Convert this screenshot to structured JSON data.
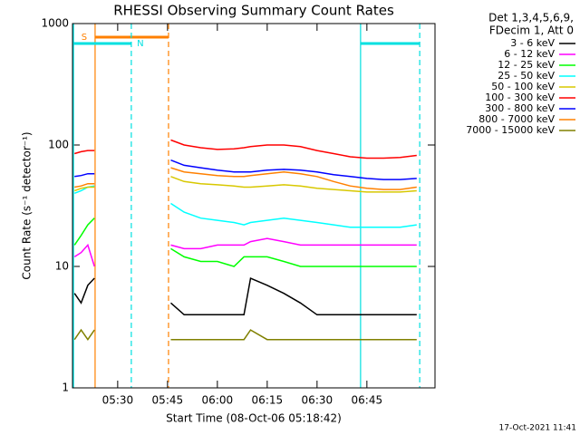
{
  "chart_data": {
    "type": "line",
    "title": "RHESSI Observing Summary Count Rates",
    "xlabel": "Start Time (08-Oct-06 05:18:42)",
    "ylabel": "Count Rate (s⁻¹ detector⁻¹)",
    "legend_header": [
      "Det 1,3,4,5,6,9,",
      "FDecim 1, Att 0"
    ],
    "timestamp": "17-Oct-2021 11:41",
    "log_y": true,
    "ylim": [
      1,
      1000
    ],
    "yticks": [
      1,
      10,
      100,
      1000
    ],
    "xlim": [
      316.4,
      425.5
    ],
    "xticks": [
      {
        "value": 330,
        "label": "05:30"
      },
      {
        "value": 345,
        "label": "05:45"
      },
      {
        "value": 360,
        "label": "06:00"
      },
      {
        "value": 375,
        "label": "06:15"
      },
      {
        "value": 390,
        "label": "06:30"
      },
      {
        "value": 405,
        "label": "06:45"
      }
    ],
    "intervals": [
      {
        "label": "S",
        "color": "#ff8000",
        "xlim": [
          323.2,
          345.3
        ],
        "level": 773
      },
      {
        "label": "N",
        "color": "#00e0e0",
        "xlim": [
          316.7,
          334.1
        ],
        "level": 685
      },
      {
        "color": "#00e0e0",
        "xlim": [
          403.1,
          420.9
        ],
        "level": 685
      }
    ],
    "x": [
      317,
      319,
      321,
      323,
      334,
      346,
      350,
      355,
      360,
      365,
      368,
      370,
      375,
      380,
      385,
      390,
      395,
      400,
      405,
      410,
      415,
      420
    ],
    "series": [
      {
        "name": "3 - 6 keV",
        "color": "#000000",
        "values": [
          6,
          5,
          7,
          8,
          null,
          5,
          4,
          4,
          4,
          4,
          4,
          8,
          7,
          6,
          5,
          4,
          4,
          4,
          4,
          4,
          4,
          4
        ]
      },
      {
        "name": "6 - 12 keV",
        "color": "#ff00ff",
        "values": [
          12,
          13,
          15,
          10,
          null,
          15,
          14,
          14,
          15,
          15,
          15,
          16,
          17,
          16,
          15,
          15,
          15,
          15,
          15,
          15,
          15,
          15
        ]
      },
      {
        "name": "12 - 25 keV",
        "color": "#00ff00",
        "values": [
          15,
          18,
          22,
          25,
          null,
          14,
          12,
          11,
          11,
          10,
          12,
          12,
          12,
          11,
          10,
          10,
          10,
          10,
          10,
          10,
          10,
          10
        ]
      },
      {
        "name": "25 - 50 keV",
        "color": "#00ffff",
        "values": [
          40,
          42,
          45,
          46,
          null,
          33,
          28,
          25,
          24,
          23,
          22,
          23,
          24,
          25,
          24,
          23,
          22,
          21,
          21,
          21,
          21,
          22
        ]
      },
      {
        "name": "50 - 100 keV",
        "color": "#d8c800",
        "values": [
          42,
          44,
          45,
          45,
          null,
          55,
          50,
          48,
          47,
          46,
          45,
          45,
          46,
          47,
          46,
          44,
          43,
          42,
          41,
          41,
          41,
          42
        ]
      },
      {
        "name": "100 - 300 keV",
        "color": "#ff0000",
        "values": [
          85,
          88,
          90,
          90,
          null,
          110,
          100,
          95,
          92,
          93,
          95,
          97,
          100,
          100,
          97,
          90,
          85,
          80,
          78,
          78,
          79,
          82
        ]
      },
      {
        "name": "300 - 800 keV",
        "color": "#0000ff",
        "values": [
          55,
          56,
          58,
          58,
          null,
          75,
          68,
          65,
          62,
          60,
          60,
          60,
          62,
          63,
          62,
          60,
          57,
          55,
          53,
          52,
          52,
          53
        ]
      },
      {
        "name": "800 - 7000 keV",
        "color": "#ff8000",
        "values": [
          45,
          46,
          48,
          48,
          null,
          65,
          60,
          58,
          56,
          55,
          55,
          56,
          58,
          60,
          58,
          55,
          50,
          46,
          44,
          43,
          43,
          45
        ]
      },
      {
        "name": "7000 - 15000 keV",
        "color": "#808000",
        "values": [
          2.5,
          3,
          2.5,
          3,
          null,
          2.5,
          2.5,
          2.5,
          2.5,
          2.5,
          2.5,
          3,
          2.5,
          2.5,
          2.5,
          2.5,
          2.5,
          2.5,
          2.5,
          2.5,
          2.5,
          2.5
        ]
      }
    ]
  }
}
